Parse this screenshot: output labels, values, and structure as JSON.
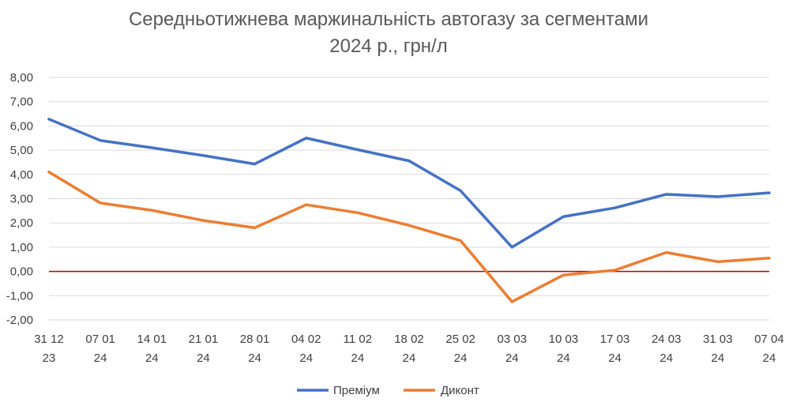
{
  "chart_data": {
    "type": "line",
    "title_line1": "Середньотижнева маржинальність автогазу за сегментами",
    "title_line2": "2024 р., грн/л",
    "xlabel": "",
    "ylabel": "",
    "ylim": [
      -2,
      8
    ],
    "yticks": [
      "8,00",
      "7,00",
      "6,00",
      "5,00",
      "4,00",
      "3,00",
      "2,00",
      "1,00",
      "0,00",
      "-1,00",
      "-2,00"
    ],
    "categories": [
      [
        "31 12",
        "23"
      ],
      [
        "07 01",
        "24"
      ],
      [
        "14 01",
        "24"
      ],
      [
        "21 01",
        "24"
      ],
      [
        "28 01",
        "24"
      ],
      [
        "04 02",
        "24"
      ],
      [
        "11 02",
        "24"
      ],
      [
        "18 02",
        "24"
      ],
      [
        "25 02",
        "24"
      ],
      [
        "03 03",
        "24"
      ],
      [
        "10 03",
        "24"
      ],
      [
        "17 03",
        "24"
      ],
      [
        "24 03",
        "24"
      ],
      [
        "31 03",
        "24"
      ],
      [
        "07 04",
        "24"
      ]
    ],
    "series": [
      {
        "name": "Преміум",
        "color": "#4472C4",
        "values": [
          6.28,
          5.4,
          5.1,
          4.78,
          4.43,
          5.5,
          5.02,
          4.56,
          3.33,
          1.0,
          2.26,
          2.62,
          3.18,
          3.08,
          3.24
        ]
      },
      {
        "name": "Диконт",
        "color": "#ED7D31",
        "values": [
          4.1,
          2.82,
          2.52,
          2.1,
          1.8,
          2.75,
          2.42,
          1.9,
          1.27,
          -1.25,
          -0.15,
          0.05,
          0.78,
          0.4,
          0.55
        ]
      }
    ],
    "zero_line_color": "#C00000",
    "grid": true,
    "legend_position": "bottom"
  }
}
